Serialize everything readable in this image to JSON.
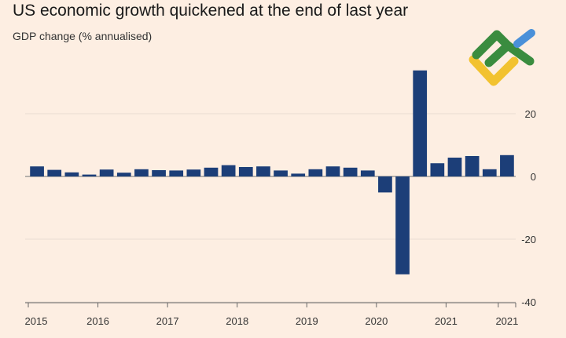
{
  "header": {
    "title": "US economic growth quickened at the end of last year",
    "subtitle": "GDP change (% annualised)"
  },
  "logo": {
    "name": "brand-logo-icon",
    "colors": [
      "#3a8c3f",
      "#f2c230",
      "#4a90d9"
    ]
  },
  "colors": {
    "background": "#fdeee2",
    "bar": "#1c3e78",
    "gridline": "#e9dcd1",
    "zero_line": "#8a8a8a"
  },
  "chart_data": {
    "type": "bar",
    "title": "US economic growth quickened at the end of last year",
    "ylabel": "GDP change (% annualised)",
    "xlabel": "",
    "ylim": [
      -40,
      40
    ],
    "y_ticks": [
      20,
      0,
      -20,
      -40
    ],
    "y_tick_labels": [
      "20",
      "0",
      "-20",
      "-40"
    ],
    "x_tick_labels": [
      "2015",
      "2016",
      "2017",
      "2018",
      "2019",
      "2020",
      "2021",
      "2021"
    ],
    "grid": true,
    "legend": "none",
    "categories": [
      "2015 Q1",
      "2015 Q2",
      "2015 Q3",
      "2015 Q4",
      "2016 Q1",
      "2016 Q2",
      "2016 Q3",
      "2016 Q4",
      "2017 Q1",
      "2017 Q2",
      "2017 Q3",
      "2017 Q4",
      "2018 Q1",
      "2018 Q2",
      "2018 Q3",
      "2018 Q4",
      "2019 Q1",
      "2019 Q2",
      "2019 Q3",
      "2019 Q4",
      "2020 Q1",
      "2020 Q2",
      "2020 Q3",
      "2020 Q4",
      "2021 Q1",
      "2021 Q2",
      "2021 Q3",
      "2021 Q4"
    ],
    "values": [
      3.2,
      2.1,
      1.3,
      0.6,
      2.2,
      1.2,
      2.3,
      2.0,
      1.9,
      2.2,
      2.8,
      3.6,
      3.0,
      3.2,
      1.9,
      0.9,
      2.3,
      3.2,
      2.8,
      1.9,
      -5.1,
      -31.2,
      33.8,
      4.2,
      6.0,
      6.5,
      2.3,
      6.8
    ]
  }
}
